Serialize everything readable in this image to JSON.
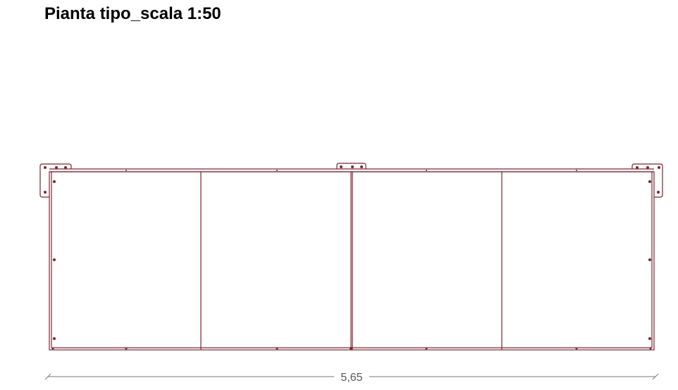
{
  "title": "Pianta tipo_scala 1:50",
  "dimension": {
    "label": "5,65"
  },
  "colors": {
    "outline": "#7a2630",
    "dimension_line": "#777777",
    "dimension_text": "#555555",
    "title": "#000000"
  }
}
